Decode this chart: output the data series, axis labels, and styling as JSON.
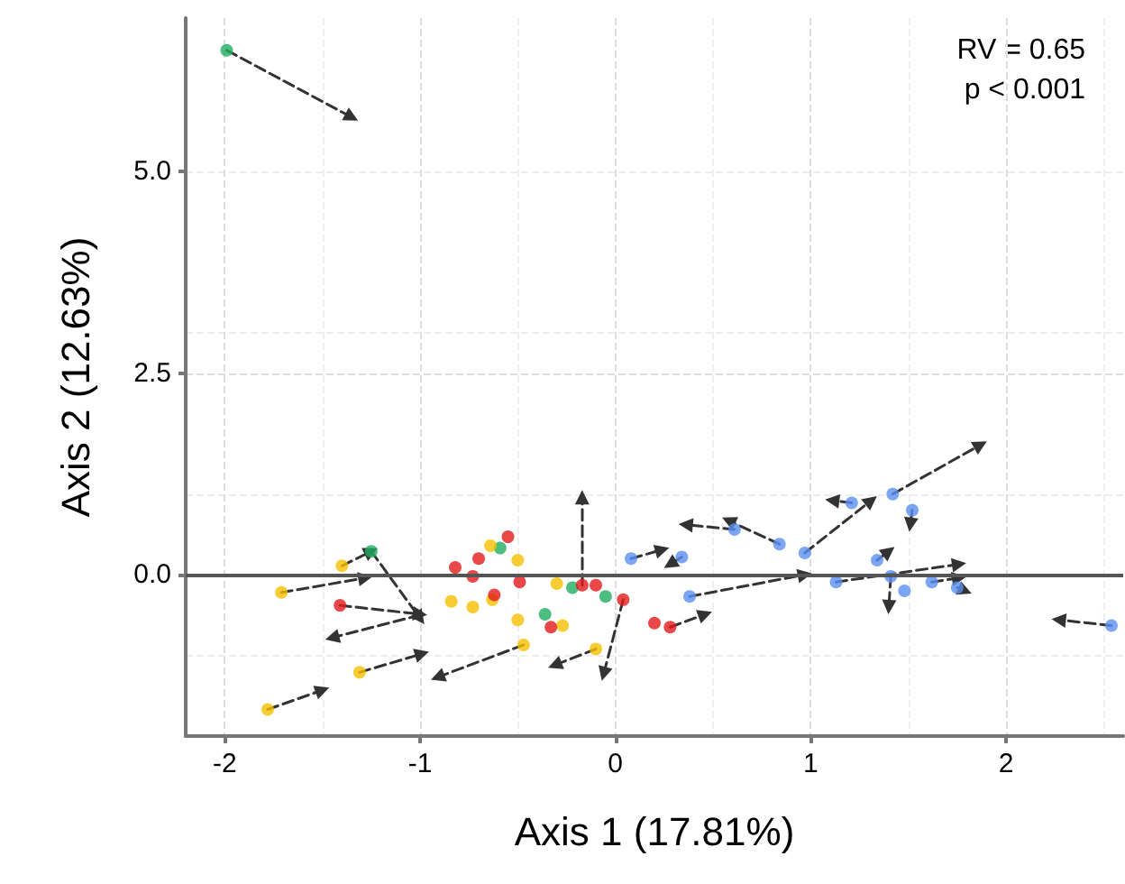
{
  "chart_data": {
    "type": "scatter",
    "xlabel": "Axis 1 (17.81%)",
    "ylabel": "Axis 2 (12.63%)",
    "annotations": [
      "RV = 0.65",
      "p < 0.001"
    ],
    "xlim": [
      -2.2,
      2.6
    ],
    "xticks": [
      -2,
      -1,
      0,
      1,
      2
    ],
    "ylim": [
      -2,
      6.9
    ],
    "yticks": [
      {
        "value": 0,
        "label": "0.0"
      },
      {
        "value": 2.5,
        "label": "2.5"
      },
      {
        "value": 5,
        "label": "5.0"
      }
    ],
    "grid": true,
    "marker": "circle",
    "ref_lines": [
      {
        "axis": "y",
        "value": 0,
        "color": "#555555"
      }
    ],
    "series": [
      {
        "type": "line",
        "color": "#333333",
        "line_style": "dashed",
        "marker": "triangle",
        "x": [
          -1.99,
          -1.35,
          null,
          -1.78,
          -1.5,
          null,
          -1.31,
          -0.99,
          null,
          -1.71,
          -1.28,
          null,
          -1.4,
          -1.25,
          null,
          -1.25,
          -1.0,
          null,
          -1.41,
          -1.0,
          null,
          -1.0,
          -1.45,
          null,
          -0.47,
          -0.91,
          null,
          -0.1,
          -0.31,
          null,
          -0.17,
          -0.17,
          null,
          0.04,
          -0.06,
          null,
          0.84,
          0.58,
          null,
          0.61,
          0.36,
          null,
          0.97,
          1.31,
          null,
          1.42,
          1.87,
          null,
          0.08,
          0.24,
          null,
          0.34,
          0.28,
          null,
          0.38,
          0.97,
          null,
          1.21,
          1.11,
          null,
          1.52,
          1.51,
          null,
          1.13,
          1.76,
          null,
          1.34,
          1.4,
          null,
          1.41,
          1.4,
          null,
          1.62,
          1.76,
          null,
          1.75,
          1.79,
          null,
          2.54,
          2.27,
          null,
          0.28,
          0.46
        ],
        "values": [
          6.5,
          5.67,
          null,
          -1.67,
          -1.43,
          null,
          -1.21,
          -0.98,
          null,
          -0.22,
          -0.04,
          null,
          0.11,
          0.29,
          null,
          0.29,
          -0.54,
          null,
          -0.38,
          -0.49,
          null,
          -0.5,
          -0.78,
          null,
          -0.87,
          -1.27,
          null,
          -0.92,
          -1.12,
          null,
          -0.13,
          0.96,
          null,
          -0.31,
          -1.23,
          null,
          0.38,
          0.67,
          null,
          0.56,
          0.62,
          null,
          0.27,
          0.92,
          null,
          1.0,
          1.61,
          null,
          0.2,
          0.31,
          null,
          0.22,
          0.13,
          null,
          -0.27,
          0.0,
          null,
          0.89,
          0.92,
          null,
          0.8,
          0.62,
          null,
          -0.09,
          0.13,
          null,
          0.18,
          0.29,
          null,
          -0.02,
          -0.4,
          null,
          -0.09,
          -0.04,
          null,
          -0.16,
          -0.2,
          null,
          -0.63,
          -0.56,
          null,
          -0.65,
          -0.49
        ]
      },
      {
        "color": "#1fae5f",
        "x": [
          -1.99,
          -1.25,
          -0.36,
          -0.59,
          -0.22,
          -0.05
        ],
        "values": [
          6.5,
          0.29,
          -0.49,
          0.33,
          -0.16,
          -0.27
        ]
      },
      {
        "color": "#f5c000",
        "x": [
          -1.78,
          -1.31,
          -1.71,
          -1.4,
          -0.84,
          -0.73,
          -0.64,
          -0.5,
          -0.63,
          -0.5,
          -0.47,
          -0.27,
          -0.3,
          -0.1
        ],
        "values": [
          -1.67,
          -1.21,
          -0.22,
          0.11,
          -0.33,
          -0.4,
          0.36,
          0.18,
          -0.31,
          -0.56,
          -0.87,
          -0.63,
          -0.11,
          -0.92
        ]
      },
      {
        "color": "#e31a1c",
        "x": [
          -1.41,
          -0.82,
          -0.7,
          -0.55,
          -0.73,
          -0.62,
          -0.49,
          -0.33,
          -0.17,
          -0.1,
          0.04,
          0.2,
          0.28
        ],
        "values": [
          -0.38,
          0.09,
          0.2,
          0.47,
          -0.02,
          -0.25,
          -0.09,
          -0.65,
          -0.13,
          -0.13,
          -0.31,
          -0.6,
          -0.65
        ]
      },
      {
        "color": "#5b8ff0",
        "x": [
          0.08,
          0.34,
          0.38,
          0.61,
          0.84,
          0.97,
          1.13,
          1.21,
          1.42,
          1.52,
          1.34,
          1.41,
          1.48,
          1.62,
          1.75,
          2.54
        ],
        "values": [
          0.2,
          0.22,
          -0.27,
          0.56,
          0.38,
          0.27,
          -0.09,
          0.89,
          1.0,
          0.8,
          0.18,
          -0.02,
          -0.2,
          -0.09,
          -0.16,
          -0.63
        ]
      }
    ]
  }
}
